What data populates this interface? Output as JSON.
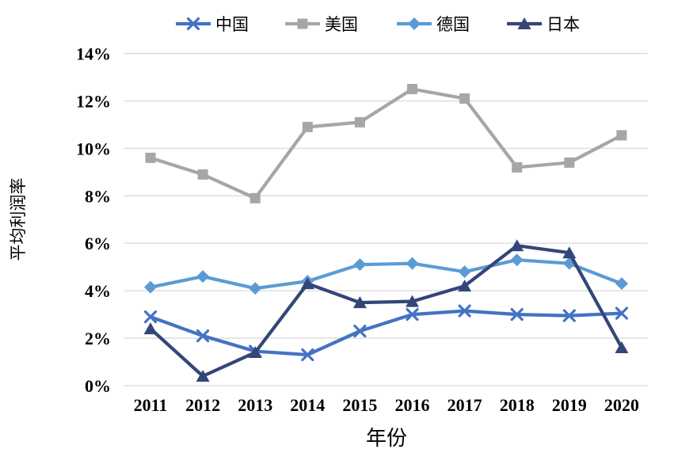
{
  "chart_data": {
    "type": "line",
    "title": "",
    "xlabel": "年份",
    "ylabel": "平均利润率",
    "ylim": [
      0,
      14
    ],
    "ytick_step": 2,
    "ytick_labels": [
      "0%",
      "2%",
      "4%",
      "6%",
      "8%",
      "10%",
      "12%",
      "14%"
    ],
    "grid": "horizontal",
    "gridline_color": "#D9D9D9",
    "legend_position": "top",
    "categories": [
      "2011",
      "2012",
      "2013",
      "2014",
      "2015",
      "2016",
      "2017",
      "2018",
      "2019",
      "2020"
    ],
    "series": [
      {
        "id": "china",
        "name": "中国",
        "color": "#4472C4",
        "marker": "x",
        "values": [
          2.9,
          2.1,
          1.45,
          1.3,
          2.3,
          3.0,
          3.15,
          3.0,
          2.95,
          3.05
        ]
      },
      {
        "id": "usa",
        "name": "美国",
        "color": "#A6A6A6",
        "marker": "square",
        "values": [
          9.6,
          8.9,
          7.9,
          10.9,
          11.1,
          12.5,
          12.1,
          9.2,
          9.4,
          10.55
        ]
      },
      {
        "id": "germany",
        "name": "德国",
        "color": "#5B9BD5",
        "marker": "diamond",
        "values": [
          4.15,
          4.6,
          4.1,
          4.4,
          5.1,
          5.15,
          4.8,
          5.3,
          5.15,
          4.3
        ]
      },
      {
        "id": "japan",
        "name": "日本",
        "color": "#344678",
        "marker": "triangle",
        "values": [
          2.4,
          0.4,
          1.4,
          4.3,
          3.5,
          3.55,
          4.2,
          5.9,
          5.6,
          1.6
        ]
      }
    ]
  }
}
